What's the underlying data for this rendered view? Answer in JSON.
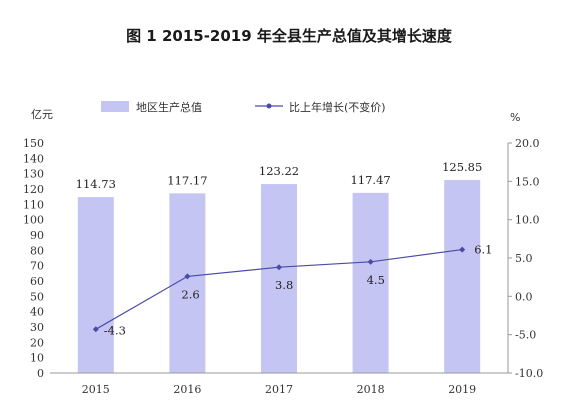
{
  "chart_data": {
    "title": "图 1 2015-2019 年全县生产总值及其增长速度",
    "type": "bar+line",
    "categories": [
      "2015",
      "2016",
      "2017",
      "2018",
      "2019"
    ],
    "series": [
      {
        "name": "地区生产总值",
        "type": "bar",
        "axis": "left",
        "values": [
          114.73,
          117.17,
          123.22,
          117.47,
          125.85
        ],
        "labels": [
          "114.73",
          "117.17",
          "123.22",
          "117.47",
          "125.85"
        ],
        "color": "#c5c5f3"
      },
      {
        "name": "比上年增长(不变价)",
        "type": "line",
        "axis": "right",
        "values": [
          -4.3,
          2.6,
          3.8,
          4.5,
          6.1
        ],
        "labels": [
          "-4.3",
          "2.6",
          "3.8",
          "4.5",
          "6.1"
        ],
        "color": "#4a4aa8"
      }
    ],
    "left_axis": {
      "unit": "亿元",
      "ylim": [
        0,
        150
      ],
      "ticks": [
        "0",
        "10",
        "20",
        "30",
        "40",
        "50",
        "60",
        "70",
        "80",
        "90",
        "100",
        "110",
        "120",
        "130",
        "140",
        "150"
      ]
    },
    "right_axis": {
      "unit": "%",
      "ylim": [
        -10,
        20
      ],
      "ticks": [
        "-10.0",
        "-5.0",
        "0.0",
        "5.0",
        "10.0",
        "15.0",
        "20.0"
      ]
    },
    "legend_position": "top",
    "grid": false
  }
}
